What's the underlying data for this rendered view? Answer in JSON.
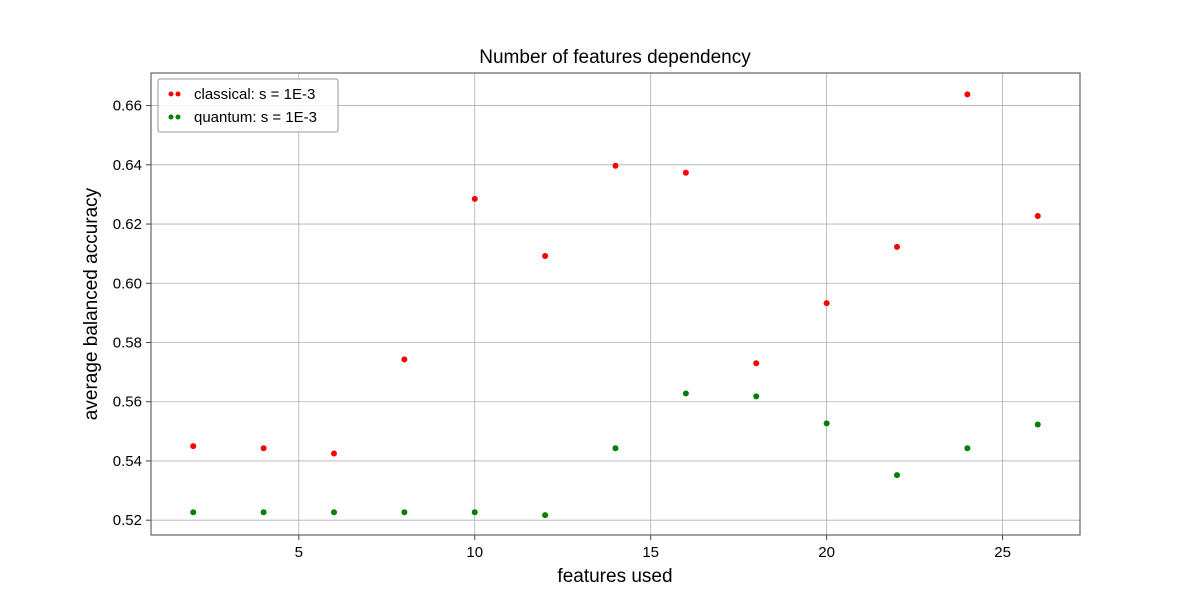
{
  "chart_data": {
    "type": "scatter",
    "title": "Number of features dependency",
    "xlabel": "features used",
    "ylabel": "average balanced accuracy",
    "xlim": [
      0.8,
      27.2
    ],
    "ylim": [
      0.515,
      0.671
    ],
    "xticks": [
      5,
      10,
      15,
      20,
      25
    ],
    "yticks": [
      0.52,
      0.54,
      0.56,
      0.58,
      0.6,
      0.62,
      0.64,
      0.66
    ],
    "ytick_labels": [
      "0.52",
      "0.54",
      "0.56",
      "0.58",
      "0.60",
      "0.62",
      "0.64",
      "0.66"
    ],
    "grid": true,
    "legend_position": "top-left",
    "x": [
      2,
      4,
      6,
      8,
      10,
      12,
      14,
      16,
      18,
      20,
      22,
      24,
      26
    ],
    "series": [
      {
        "name": "classical: s = 1E-3",
        "color": "#ff0000",
        "values": [
          0.545,
          0.5443,
          0.5425,
          0.5743,
          0.6285,
          0.6092,
          0.6397,
          0.6373,
          0.573,
          0.5933,
          0.6123,
          0.6638,
          0.6227
        ]
      },
      {
        "name": "quantum: s = 1E-3",
        "color": "#008000",
        "values": [
          0.5227,
          0.5227,
          0.5227,
          0.5227,
          0.5227,
          0.5217,
          0.5443,
          0.5628,
          0.5618,
          0.5527,
          0.5352,
          0.5443,
          0.5523
        ]
      }
    ]
  }
}
